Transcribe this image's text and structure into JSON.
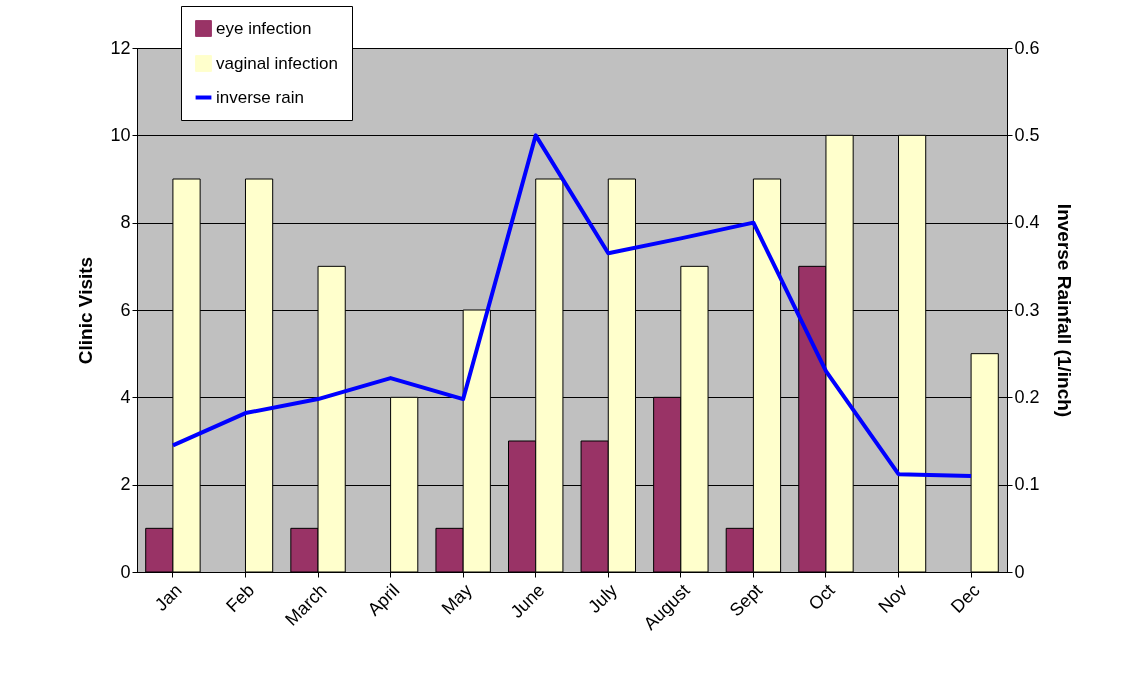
{
  "chart_data": {
    "type": "bar",
    "ylabel": "Clinic Visits",
    "y2label": "Inverse Rainfall (1/inch)",
    "categories": [
      "Jan",
      "Feb",
      "March",
      "April",
      "May",
      "June",
      "July",
      "August",
      "Sept",
      "Oct",
      "Nov",
      "Dec"
    ],
    "series": [
      {
        "name": "eye infection",
        "color": "#993366",
        "values": [
          1,
          0,
          1,
          0,
          1,
          3,
          3,
          4,
          1,
          7,
          0,
          0
        ]
      },
      {
        "name": "vaginal infection",
        "color": "#ffffcc",
        "values": [
          9,
          9,
          7,
          4,
          6,
          9,
          9,
          7,
          9,
          10,
          10,
          5
        ]
      },
      {
        "name": "inverse rain",
        "type": "line",
        "axis": "y2",
        "color": "#0000ff",
        "values": [
          0.145,
          0.182,
          0.198,
          0.222,
          0.198,
          0.5,
          0.365,
          0.382,
          0.4,
          0.23,
          0.112,
          0.11
        ]
      }
    ],
    "ylim": [
      0,
      12
    ],
    "yticks": [
      0,
      2,
      4,
      6,
      8,
      10,
      12
    ],
    "y2lim": [
      0,
      0.6
    ],
    "y2ticks": [
      {
        "value": 0,
        "label": "0"
      },
      0.1,
      0.2,
      0.3,
      0.4,
      0.5,
      0.6
    ],
    "grid": "y",
    "legend": "top left"
  }
}
